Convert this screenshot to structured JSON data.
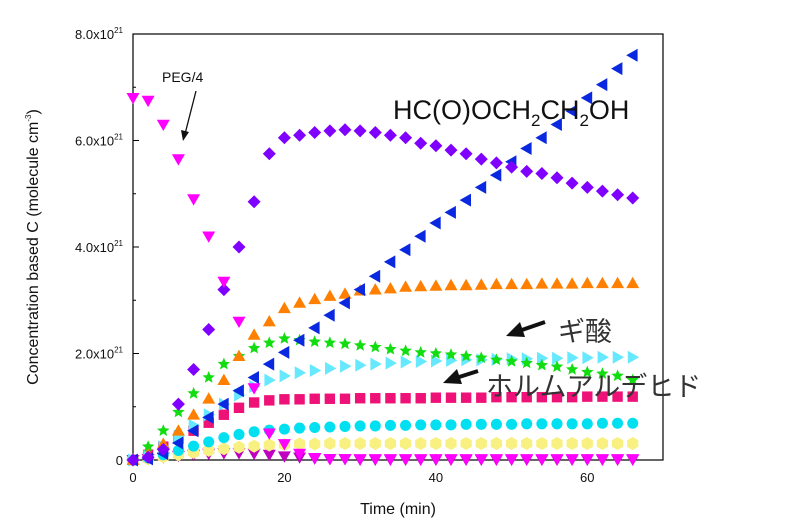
{
  "chart_data": {
    "type": "scatter",
    "title": "",
    "xlabel": "Time (min)",
    "ylabel": "Concentration based C (molecule cm-3)",
    "ylabel_parts": {
      "main": "Concentration based C (molecule cm",
      "sup": "-3",
      "end": ")"
    },
    "xlim": [
      0,
      70
    ],
    "ylim": [
      0,
      8e+21
    ],
    "xticks": [
      0,
      20,
      40,
      60
    ],
    "xtick_labels": [
      "0",
      "20",
      "40",
      "60"
    ],
    "yticks": [
      0,
      2e+21,
      4e+21,
      6e+21,
      8e+21
    ],
    "ytick_labels": [
      {
        "main": "0",
        "sup": ""
      },
      {
        "main": "2.0x10",
        "sup": "21"
      },
      {
        "main": "4.0x10",
        "sup": "21"
      },
      {
        "main": "6.0x10",
        "sup": "21"
      },
      {
        "main": "8.0x10",
        "sup": "21"
      }
    ],
    "grid": false,
    "series": [
      {
        "color": "#ff00ff",
        "marker": "triangle-down",
        "x": [
          0,
          2,
          4,
          6,
          8,
          10,
          12,
          14,
          16,
          18,
          20,
          22,
          24,
          26,
          28,
          30,
          32,
          34,
          36,
          38,
          40,
          42,
          44,
          46,
          48,
          50,
          52,
          54,
          56,
          58,
          60,
          62,
          64,
          66
        ],
        "y": [
          6.8e+21,
          6.75e+21,
          6.3e+21,
          5.65e+21,
          4.9e+21,
          4.2e+21,
          3.35e+21,
          2.6e+21,
          1.35e+21,
          5e+20,
          3e+20,
          1.2e+20,
          4e+19,
          2e+19,
          2e+19,
          2e+19,
          2e+19,
          2e+19,
          2e+19,
          2e+19,
          2e+19,
          2e+19,
          2e+19,
          2e+19,
          2e+19,
          2e+19,
          2e+19,
          2e+19,
          2e+19,
          2e+19,
          2e+19,
          2e+19,
          2e+19,
          2e+19
        ]
      },
      {
        "color": "#8000ff",
        "marker": "diamond",
        "x": [
          0,
          2,
          4,
          6,
          8,
          10,
          12,
          14,
          16,
          18,
          20,
          22,
          24,
          26,
          28,
          30,
          32,
          34,
          36,
          38,
          40,
          42,
          44,
          46,
          48,
          50,
          52,
          54,
          56,
          58,
          60,
          62,
          64,
          66
        ],
        "y": [
          0.0,
          5e+19,
          2e+20,
          1.05e+21,
          1.7e+21,
          2.45e+21,
          3.2e+21,
          4e+21,
          4.85e+21,
          5.75e+21,
          6.05e+21,
          6.1e+21,
          6.15e+21,
          6.18e+21,
          6.2e+21,
          6.18e+21,
          6.15e+21,
          6.1e+21,
          6.05e+21,
          5.95e+21,
          5.9e+21,
          5.82e+21,
          5.75e+21,
          5.65e+21,
          5.58e+21,
          5.5e+21,
          5.42e+21,
          5.38e+21,
          5.3e+21,
          5.2e+21,
          5.12e+21,
          5.05e+21,
          4.98e+21,
          4.92e+21
        ]
      },
      {
        "color": "#0a28e0",
        "marker": "triangle-left",
        "x": [
          0,
          2,
          4,
          6,
          8,
          10,
          12,
          14,
          16,
          18,
          20,
          22,
          24,
          26,
          28,
          30,
          32,
          34,
          36,
          38,
          40,
          42,
          44,
          46,
          48,
          50,
          52,
          54,
          56,
          58,
          60,
          62,
          64,
          66
        ],
        "y": [
          0.0,
          2e+19,
          1.2e+20,
          3.2e+20,
          5.5e+20,
          8e+20,
          1.05e+21,
          1.3e+21,
          1.55e+21,
          1.8e+21,
          2.02e+21,
          2.25e+21,
          2.48e+21,
          2.72e+21,
          2.95e+21,
          3.2e+21,
          3.45e+21,
          3.72e+21,
          3.95e+21,
          4.2e+21,
          4.45e+21,
          4.65e+21,
          4.88e+21,
          5.12e+21,
          5.35e+21,
          5.6e+21,
          5.85e+21,
          6.05e+21,
          6.3e+21,
          6.55e+21,
          6.8e+21,
          7.05e+21,
          7.35e+21,
          7.6e+21
        ]
      },
      {
        "color": "#ff8000",
        "marker": "triangle-up",
        "x": [
          0,
          2,
          4,
          6,
          8,
          10,
          12,
          14,
          16,
          18,
          20,
          22,
          24,
          26,
          28,
          30,
          32,
          34,
          36,
          38,
          40,
          42,
          44,
          46,
          48,
          50,
          52,
          54,
          56,
          58,
          60,
          62,
          64,
          66
        ],
        "y": [
          0.0,
          1e+20,
          3e+20,
          5.5e+20,
          8.5e+20,
          1.15e+21,
          1.5e+21,
          1.95e+21,
          2.35e+21,
          2.6e+21,
          2.85e+21,
          2.95e+21,
          3.02e+21,
          3.08e+21,
          3.12e+21,
          3.18e+21,
          3.2e+21,
          3.22e+21,
          3.25e+21,
          3.26e+21,
          3.27e+21,
          3.28e+21,
          3.28e+21,
          3.29e+21,
          3.3e+21,
          3.3e+21,
          3.3e+21,
          3.31e+21,
          3.31e+21,
          3.31e+21,
          3.32e+21,
          3.32e+21,
          3.32e+21,
          3.32e+21
        ]
      },
      {
        "color": "#11dd11",
        "marker": "star",
        "x": [
          0,
          2,
          4,
          6,
          8,
          10,
          12,
          14,
          16,
          18,
          20,
          22,
          24,
          26,
          28,
          30,
          32,
          34,
          36,
          38,
          40,
          42,
          44,
          46,
          48,
          50,
          52,
          54,
          56,
          58,
          60,
          62,
          64,
          66
        ],
        "y": [
          0.0,
          2.5e+20,
          5.5e+20,
          9e+20,
          1.25e+21,
          1.55e+21,
          1.8e+21,
          1.95e+21,
          2.1e+21,
          2.2e+21,
          2.28e+21,
          2.25e+21,
          2.22e+21,
          2.2e+21,
          2.18e+21,
          2.15e+21,
          2.12e+21,
          2.08e+21,
          2.05e+21,
          2.02e+21,
          2e+21,
          1.98e+21,
          1.95e+21,
          1.92e+21,
          1.88e+21,
          1.85e+21,
          1.82e+21,
          1.78e+21,
          1.75e+21,
          1.7e+21,
          1.65e+21,
          1.62e+21,
          1.58e+21,
          1.5e+21
        ]
      },
      {
        "color": "#66e8ff",
        "marker": "triangle-right",
        "x": [
          0,
          2,
          4,
          6,
          8,
          10,
          12,
          14,
          16,
          18,
          20,
          22,
          24,
          26,
          28,
          30,
          32,
          34,
          36,
          38,
          40,
          42,
          44,
          46,
          48,
          50,
          52,
          54,
          56,
          58,
          60,
          62,
          64,
          66
        ],
        "y": [
          0.0,
          8e+19,
          2.5e+20,
          4.5e+20,
          6.5e+20,
          8.5e+20,
          1.05e+21,
          1.22e+21,
          1.38e+21,
          1.5e+21,
          1.58e+21,
          1.64e+21,
          1.68e+21,
          1.72e+21,
          1.76e+21,
          1.78e+21,
          1.8e+21,
          1.82e+21,
          1.84e+21,
          1.85e+21,
          1.86e+21,
          1.87e+21,
          1.88e+21,
          1.88e+21,
          1.89e+21,
          1.9e+21,
          1.9e+21,
          1.91e+21,
          1.91e+21,
          1.92e+21,
          1.92e+21,
          1.93e+21,
          1.93e+21,
          1.93e+21
        ]
      },
      {
        "color": "#ee1177",
        "marker": "square",
        "x": [
          0,
          2,
          4,
          6,
          8,
          10,
          12,
          14,
          16,
          18,
          20,
          22,
          24,
          26,
          28,
          30,
          32,
          34,
          36,
          38,
          40,
          42,
          44,
          46,
          48,
          50,
          52,
          54,
          56,
          58,
          60,
          62,
          64,
          66
        ],
        "y": [
          0.0,
          1e+20,
          2.5e+20,
          4e+20,
          5.5e+20,
          7e+20,
          8.5e+20,
          9.8e+20,
          1.08e+21,
          1.12e+21,
          1.14e+21,
          1.14e+21,
          1.15e+21,
          1.15e+21,
          1.15e+21,
          1.16e+21,
          1.16e+21,
          1.16e+21,
          1.16e+21,
          1.16e+21,
          1.17e+21,
          1.17e+21,
          1.17e+21,
          1.17e+21,
          1.18e+21,
          1.18e+21,
          1.18e+21,
          1.18e+21,
          1.18e+21,
          1.18e+21,
          1.19e+21,
          1.19e+21,
          1.19e+21,
          1.19e+21
        ]
      },
      {
        "color": "#00e0f0",
        "marker": "circle",
        "x": [
          0,
          2,
          4,
          6,
          8,
          10,
          12,
          14,
          16,
          18,
          20,
          22,
          24,
          26,
          28,
          30,
          32,
          34,
          36,
          38,
          40,
          42,
          44,
          46,
          48,
          50,
          52,
          54,
          56,
          58,
          60,
          62,
          64,
          66
        ],
        "y": [
          0.0,
          4e+19,
          1e+20,
          1.8e+20,
          2.6e+20,
          3.4e+20,
          4.2e+20,
          4.8e+20,
          5.3e+20,
          5.6e+20,
          5.8e+20,
          6e+20,
          6.1e+20,
          6.2e+20,
          6.3e+20,
          6.4e+20,
          6.4e+20,
          6.5e+20,
          6.5e+20,
          6.6e+20,
          6.6e+20,
          6.6e+20,
          6.7e+20,
          6.7e+20,
          6.7e+20,
          6.7e+20,
          6.8e+20,
          6.8e+20,
          6.8e+20,
          6.8e+20,
          6.8e+20,
          6.9e+20,
          6.9e+20,
          6.9e+20
        ]
      },
      {
        "color": "#f8f080",
        "marker": "hexagon",
        "x": [
          0,
          2,
          4,
          6,
          8,
          10,
          12,
          14,
          16,
          18,
          20,
          22,
          24,
          26,
          28,
          30,
          32,
          34,
          36,
          38,
          40,
          42,
          44,
          46,
          48,
          50,
          52,
          54,
          56,
          58,
          60,
          62,
          64,
          66
        ],
        "y": [
          0.0,
          2e+19,
          6e+19,
          1e+20,
          1.4e+20,
          1.8e+20,
          2.1e+20,
          2.4e+20,
          2.6e+20,
          2.8e+20,
          2.9e+20,
          3e+20,
          3e+20,
          3.1e+20,
          3.1e+20,
          3.1e+20,
          3.1e+20,
          3.1e+20,
          3.1e+20,
          3.1e+20,
          3.1e+20,
          3.1e+20,
          3.1e+20,
          3.1e+20,
          3.1e+20,
          3.1e+20,
          3.1e+20,
          3.1e+20,
          3.1e+20,
          3.1e+20,
          3.1e+20,
          3.1e+20,
          3.1e+20,
          3.1e+20
        ]
      },
      {
        "color": "#c000c0",
        "marker": "triangle-down",
        "x": [
          0,
          2,
          4,
          6,
          8,
          10,
          12,
          14,
          16,
          18,
          20,
          22,
          24,
          26,
          28,
          30,
          32,
          34,
          36,
          38,
          40,
          42,
          44,
          46,
          48,
          50,
          52,
          54,
          56,
          58,
          60,
          62,
          64,
          66
        ],
        "y": [
          0.0,
          2e+19,
          5e+19,
          8e+19,
          1e+20,
          1.2e+20,
          1.3e+20,
          1.3e+20,
          1.2e+20,
          1e+20,
          7e+19,
          5e+19,
          3e+19,
          2e+19,
          2e+19,
          1e+19,
          1e+19,
          1e+19,
          1e+19,
          1e+19,
          1e+19,
          1e+19,
          1e+19,
          1e+19,
          1e+19,
          1e+19,
          1e+19,
          1e+19,
          1e+19,
          1e+19,
          1e+19,
          1e+19,
          1e+19,
          1e+19
        ]
      }
    ],
    "annotations": [
      {
        "id": "peg",
        "text": "PEG/4"
      },
      {
        "id": "hcoo",
        "parts": [
          "HC(O)OCH",
          "2",
          "CH",
          "2",
          "OH"
        ]
      },
      {
        "id": "formic",
        "text": "ギ酸"
      },
      {
        "id": "formaldehyde",
        "text": "ホルムアルデヒド"
      }
    ]
  }
}
